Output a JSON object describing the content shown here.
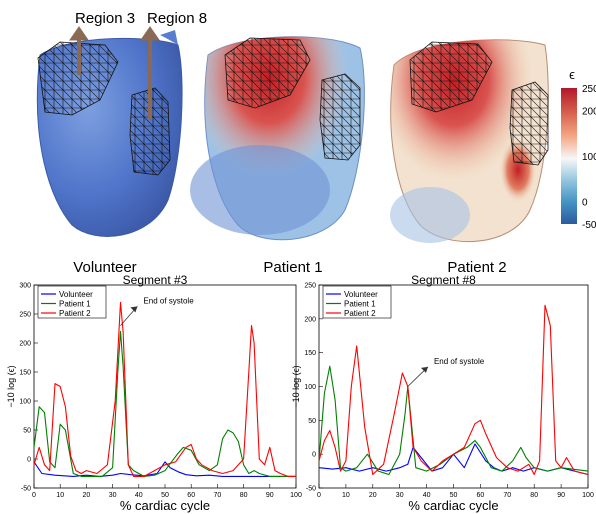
{
  "figure": {
    "region_labels": [
      "Region 3",
      "Region 8"
    ],
    "heart_labels": [
      "Volunteer",
      "Patient 1",
      "Patient 2"
    ],
    "colorbar": {
      "symbol": "ϵ",
      "ticks": [
        250,
        200,
        100,
        0,
        -50
      ],
      "colors": [
        "#b2182b",
        "#d6604d",
        "#f4a582",
        "#f7f7f7",
        "#92c5de",
        "#4393c3",
        "#2c5aa0"
      ]
    }
  },
  "chart_data": [
    {
      "type": "line",
      "title": "Segment #3",
      "xlabel": "% cardiac cycle",
      "ylabel": "−10 log (ϵ)",
      "xlim": [
        0,
        100
      ],
      "ylim": [
        -50,
        300
      ],
      "xticks": [
        0,
        10,
        20,
        30,
        40,
        50,
        60,
        70,
        80,
        90,
        100
      ],
      "yticks": [
        -50,
        0,
        50,
        100,
        150,
        200,
        250,
        300
      ],
      "legend": "top-left",
      "annotation": {
        "text": "End of systole",
        "x": 33,
        "y": 230,
        "text_x": 41,
        "text_y": 270
      },
      "series": [
        {
          "name": "Volunteer",
          "color": "#0000ff",
          "x": [
            0,
            3,
            8,
            15,
            20,
            25,
            30,
            33,
            37,
            42,
            47,
            50,
            52,
            55,
            58,
            62,
            67,
            72,
            77,
            82,
            87,
            92,
            97,
            100
          ],
          "y": [
            -5,
            -25,
            -28,
            -30,
            -28,
            -30,
            -28,
            -25,
            -27,
            -29,
            -25,
            -5,
            -15,
            -22,
            -27,
            -29,
            -28,
            -30,
            -30,
            -30,
            -30,
            -30,
            -30,
            -30
          ]
        },
        {
          "name": "Patient 1",
          "color": "#008000",
          "x": [
            0,
            2,
            4,
            6,
            8,
            10,
            12,
            15,
            18,
            22,
            26,
            30,
            32,
            33,
            34,
            36,
            38,
            42,
            46,
            50,
            55,
            57,
            60,
            63,
            67,
            70,
            72,
            74,
            76,
            78,
            80,
            82,
            84,
            86,
            90,
            94,
            100
          ],
          "y": [
            20,
            90,
            80,
            -5,
            -15,
            60,
            50,
            -25,
            -30,
            -30,
            -30,
            -15,
            150,
            220,
            160,
            -10,
            -20,
            -30,
            -28,
            -20,
            10,
            20,
            15,
            -10,
            -20,
            -10,
            35,
            50,
            45,
            30,
            -10,
            -25,
            -20,
            -25,
            -30,
            -30,
            -30
          ]
        },
        {
          "name": "Patient 2",
          "color": "#ff0000",
          "x": [
            0,
            2,
            4,
            6,
            8,
            10,
            12,
            14,
            16,
            18,
            20,
            24,
            28,
            31,
            33,
            34,
            36,
            38,
            42,
            46,
            50,
            54,
            58,
            60,
            62,
            64,
            68,
            72,
            76,
            78,
            80,
            82,
            83,
            84,
            86,
            88,
            90,
            92,
            94,
            97,
            100
          ],
          "y": [
            -10,
            20,
            -10,
            -20,
            130,
            125,
            90,
            5,
            -20,
            -25,
            -20,
            -25,
            -10,
            100,
            270,
            220,
            -10,
            -30,
            -30,
            -20,
            -10,
            -5,
            20,
            25,
            0,
            -10,
            -20,
            -25,
            -20,
            -10,
            0,
            150,
            230,
            200,
            0,
            -10,
            20,
            -20,
            -25,
            -30,
            -30
          ]
        }
      ]
    },
    {
      "type": "line",
      "title": "Segment #8",
      "xlabel": "% cardiac cycle",
      "ylabel": "−10 log (ϵ)",
      "xlim": [
        0,
        100
      ],
      "ylim": [
        -50,
        250
      ],
      "xticks": [
        0,
        10,
        20,
        30,
        40,
        50,
        60,
        70,
        80,
        90,
        100
      ],
      "yticks": [
        -50,
        0,
        50,
        100,
        150,
        200,
        250
      ],
      "legend": "top-left",
      "annotation": {
        "text": "End of systole",
        "x": 33,
        "y": 100,
        "text_x": 42,
        "text_y": 135
      },
      "series": [
        {
          "name": "Volunteer",
          "color": "#0000ff",
          "x": [
            0,
            5,
            10,
            15,
            20,
            25,
            30,
            33,
            35,
            38,
            42,
            46,
            50,
            54,
            58,
            62,
            65,
            68,
            72,
            76,
            80,
            85,
            90,
            95,
            100
          ],
          "y": [
            -20,
            -22,
            -20,
            -25,
            -20,
            -25,
            -20,
            -15,
            10,
            -5,
            -25,
            -20,
            0,
            -20,
            15,
            -10,
            -20,
            -25,
            -20,
            -25,
            -20,
            -25,
            -20,
            -25,
            -30
          ]
        },
        {
          "name": "Patient 1",
          "color": "#008000",
          "x": [
            0,
            2,
            4,
            6,
            8,
            10,
            14,
            18,
            22,
            26,
            30,
            32,
            33,
            34,
            36,
            40,
            45,
            50,
            55,
            58,
            60,
            64,
            68,
            72,
            75,
            77,
            80,
            85,
            90,
            100
          ],
          "y": [
            -10,
            90,
            130,
            80,
            -20,
            -25,
            -20,
            0,
            -25,
            -30,
            0,
            60,
            100,
            60,
            -20,
            -25,
            -15,
            0,
            10,
            20,
            10,
            -20,
            -25,
            -10,
            10,
            -5,
            -20,
            -25,
            -20,
            -25
          ]
        },
        {
          "name": "Patient 2",
          "color": "#ff0000",
          "x": [
            0,
            2,
            4,
            6,
            8,
            10,
            12,
            14,
            17,
            20,
            24,
            28,
            31,
            33,
            35,
            38,
            42,
            46,
            50,
            54,
            58,
            60,
            62,
            66,
            70,
            74,
            78,
            80,
            82,
            84,
            86,
            88,
            90,
            92,
            95,
            100
          ],
          "y": [
            -10,
            20,
            35,
            10,
            -25,
            -10,
            100,
            160,
            40,
            -30,
            -15,
            60,
            120,
            100,
            10,
            -10,
            -25,
            -10,
            0,
            10,
            45,
            50,
            30,
            -5,
            -20,
            -25,
            -15,
            -30,
            -10,
            220,
            190,
            -10,
            -20,
            -5,
            -25,
            -30
          ]
        }
      ]
    }
  ]
}
